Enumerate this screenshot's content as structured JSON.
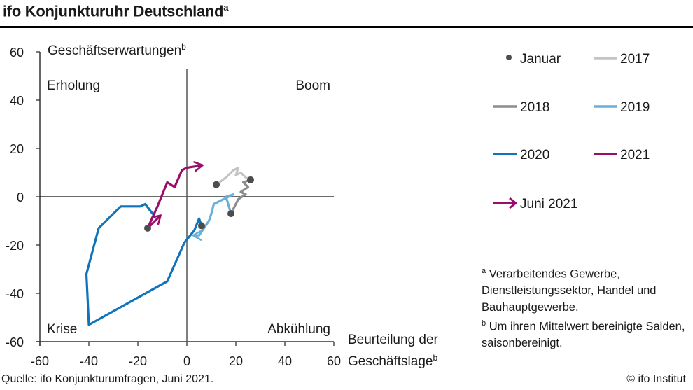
{
  "header": {
    "title": "ifo Konjunkturuhr Deutschland",
    "title_sup": "a"
  },
  "footnotes": {
    "a_mark": "a",
    "a_text": "Verarbeitendes  Gewerbe, Dienstleistungssektor,  Handel und Bauhauptgewerbe.",
    "b_mark": "b",
    "b_text": "Um ihren Mittelwert bereinigte Salden, saisonbereinigt."
  },
  "source": "Quelle: ifo Konjunkturumfragen, Juni 2021.",
  "copyright": "© ifo Institut",
  "chart_data": {
    "type": "line",
    "title": "ifo Konjunkturuhr Deutschland",
    "xlabel": "Beurteilung der Geschäftslage",
    "xlabel_line1": "Beurteilung der",
    "xlabel_line2": "Geschäftslage",
    "xlabel_sup": "b",
    "ylabel": "Geschäftserwartungen",
    "ylabel_sup": "b",
    "xlim": [
      -60,
      60
    ],
    "ylim": [
      -60,
      60
    ],
    "xticks": [
      "-60",
      "-40",
      "-20",
      "0",
      "20",
      "40",
      "60"
    ],
    "yticks": [
      "60",
      "40",
      "20",
      "0",
      "-20",
      "-40",
      "-60"
    ],
    "grid": false,
    "quadrants": {
      "top_left": "Erholung",
      "top_right": "Boom",
      "bottom_left": "Krise",
      "bottom_right": "Abkühlung"
    },
    "legend_position": "right",
    "legend": [
      {
        "label": "Januar",
        "kind": "dot",
        "color": "#4d4d4d"
      },
      {
        "label": "2017",
        "kind": "line",
        "color": "#c4c4c4"
      },
      {
        "label": "2018",
        "kind": "line",
        "color": "#8c8c8c"
      },
      {
        "label": "2019",
        "kind": "line",
        "color": "#6aaedb"
      },
      {
        "label": "2020",
        "kind": "line",
        "color": "#0f74bb"
      },
      {
        "label": "2021",
        "kind": "line",
        "color": "#9b0d6a"
      },
      {
        "label": "Juni 2021",
        "kind": "arrow",
        "color": "#9b0d6a"
      }
    ],
    "series": [
      {
        "name": "2017",
        "color": "#c4c4c4",
        "x": [
          12,
          16,
          19,
          21,
          20,
          22,
          24,
          26
        ],
        "y": [
          5,
          8,
          11,
          12,
          9,
          10,
          8,
          7
        ]
      },
      {
        "name": "2018",
        "color": "#8c8c8c",
        "x": [
          26,
          23,
          25,
          22,
          24,
          21,
          20,
          18
        ],
        "y": [
          7,
          6,
          4,
          2,
          1,
          -1,
          -3,
          -7
        ]
      },
      {
        "name": "2019",
        "color": "#6aaedb",
        "x": [
          18,
          16,
          19,
          13,
          11,
          10,
          9,
          7,
          5,
          3
        ],
        "y": [
          -7,
          0,
          1,
          -2,
          -3,
          -7,
          -10,
          -13,
          -16,
          -16
        ]
      },
      {
        "name": "2020",
        "color": "#0f74bb",
        "x": [
          6,
          5,
          3,
          -1,
          -8,
          -40,
          -41,
          -36,
          -27,
          -19,
          -17,
          -14
        ],
        "y": [
          -12,
          -9,
          -14,
          -19,
          -35,
          -53,
          -32,
          -13,
          -4,
          -4,
          -3,
          -7
        ]
      },
      {
        "name": "2021",
        "color": "#9b0d6a",
        "x": [
          -11,
          -16,
          -12,
          -10,
          -8,
          -5,
          -2,
          0,
          6
        ],
        "y": [
          -8,
          -13,
          -4,
          1,
          6,
          4,
          11,
          12,
          13
        ]
      }
    ],
    "january_points": [
      {
        "year": "2017",
        "x": 12,
        "y": 5
      },
      {
        "year": "2018",
        "x": 26,
        "y": 7
      },
      {
        "year": "2019",
        "x": 18,
        "y": -7
      },
      {
        "year": "2020",
        "x": 6,
        "y": -12
      },
      {
        "year": "2021",
        "x": -16,
        "y": -13
      }
    ],
    "latest": {
      "label": "Juni 2021",
      "x": 6,
      "y": 13
    }
  }
}
